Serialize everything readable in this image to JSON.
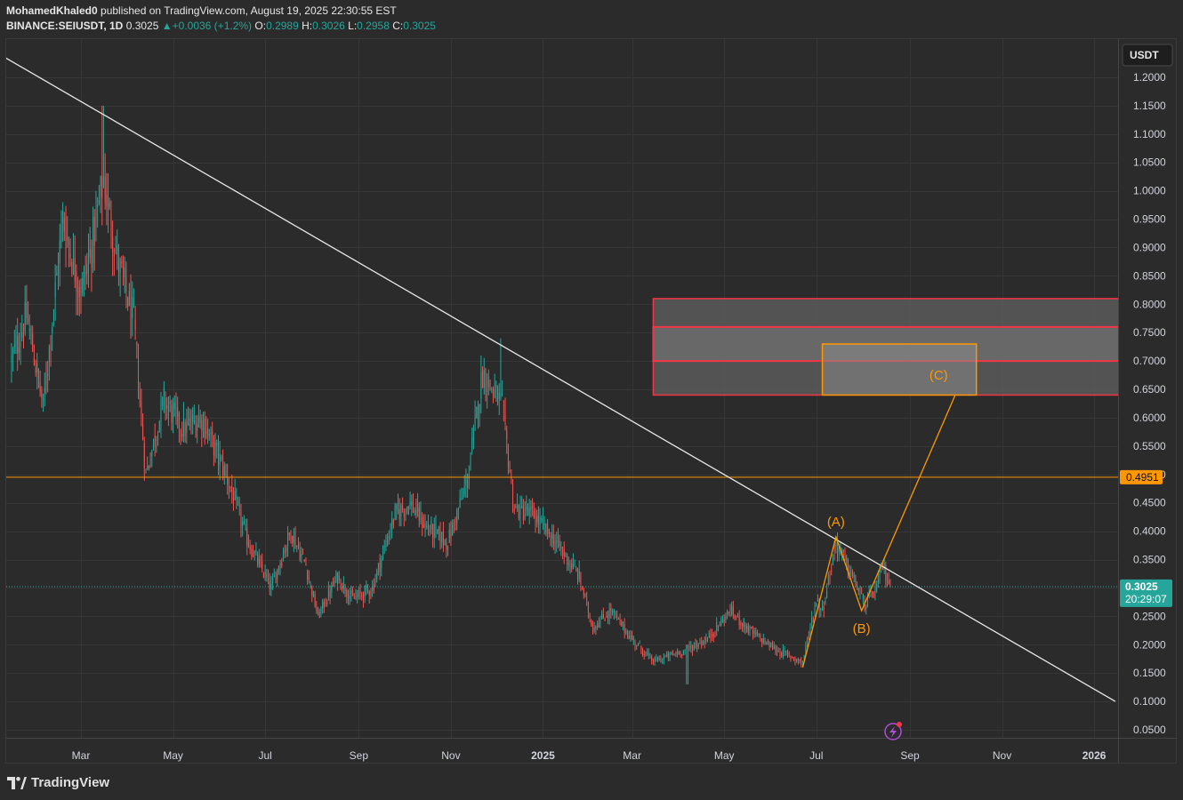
{
  "header": {
    "author": "MohamedKhaled0",
    "published_text": "published on TradingView.com, August 19, 2025 22:30:55 EST",
    "symbol": "BINANCE:SEIUSDT, 1D",
    "last": "0.3025",
    "change": "+0.0036 (+1.2%)",
    "o_label": "O:",
    "o_val": "0.2989",
    "h_label": "H:",
    "h_val": "0.3026",
    "l_label": "L:",
    "l_val": "0.2958",
    "c_label": "C:",
    "c_val": "0.3025"
  },
  "footer": {
    "brand": "TradingView"
  },
  "chart_data": {
    "type": "candlestick",
    "currency_label": "USDT",
    "y_ticks": [
      "1.2000",
      "1.1500",
      "1.1000",
      "1.0500",
      "1.0000",
      "0.9500",
      "0.9000",
      "0.8500",
      "0.8000",
      "0.7500",
      "0.7000",
      "0.6500",
      "0.6000",
      "0.5500",
      "0.5000",
      "0.4500",
      "0.4000",
      "0.3500",
      "0.3000",
      "0.2500",
      "0.2000",
      "0.1500",
      "0.1000",
      "0.0500"
    ],
    "ylim": [
      0.03,
      1.25
    ],
    "x_ticks": [
      "Mar",
      "May",
      "Jul",
      "Sep",
      "Nov",
      "2025",
      "Mar",
      "May",
      "Jul",
      "Sep",
      "Nov",
      "2026"
    ],
    "price_path": [
      [
        "2024-01-15",
        0.7
      ],
      [
        "2024-01-25",
        0.78
      ],
      [
        "2024-02-05",
        0.62
      ],
      [
        "2024-02-18",
        0.95
      ],
      [
        "2024-03-01",
        0.82
      ],
      [
        "2024-03-08",
        0.9
      ],
      [
        "2024-03-16",
        1.02
      ],
      [
        "2024-03-25",
        0.88
      ],
      [
        "2024-04-05",
        0.77
      ],
      [
        "2024-04-13",
        0.5
      ],
      [
        "2024-04-25",
        0.63
      ],
      [
        "2024-05-08",
        0.58
      ],
      [
        "2024-05-20",
        0.6
      ],
      [
        "2024-06-05",
        0.5
      ],
      [
        "2024-06-20",
        0.38
      ],
      [
        "2024-07-05",
        0.3
      ],
      [
        "2024-07-18",
        0.4
      ],
      [
        "2024-07-28",
        0.34
      ],
      [
        "2024-08-05",
        0.25
      ],
      [
        "2024-08-18",
        0.32
      ],
      [
        "2024-08-28",
        0.28
      ],
      [
        "2024-09-10",
        0.3
      ],
      [
        "2024-09-25",
        0.43
      ],
      [
        "2024-10-05",
        0.45
      ],
      [
        "2024-10-15",
        0.41
      ],
      [
        "2024-10-30",
        0.38
      ],
      [
        "2024-11-12",
        0.49
      ],
      [
        "2024-11-22",
        0.68
      ],
      [
        "2024-12-05",
        0.62
      ],
      [
        "2024-12-13",
        0.44
      ],
      [
        "2024-12-25",
        0.43
      ],
      [
        "2025-01-10",
        0.38
      ],
      [
        "2025-01-25",
        0.32
      ],
      [
        "2025-02-03",
        0.23
      ],
      [
        "2025-02-15",
        0.26
      ],
      [
        "2025-03-01",
        0.21
      ],
      [
        "2025-03-15",
        0.17
      ],
      [
        "2025-04-05",
        0.19
      ],
      [
        "2025-04-20",
        0.21
      ],
      [
        "2025-05-05",
        0.26
      ],
      [
        "2025-05-20",
        0.22
      ],
      [
        "2025-06-05",
        0.19
      ],
      [
        "2025-06-22",
        0.17
      ],
      [
        "2025-07-01",
        0.28
      ],
      [
        "2025-07-05",
        0.26
      ],
      [
        "2025-07-14",
        0.38
      ],
      [
        "2025-07-25",
        0.32
      ],
      [
        "2025-08-02",
        0.27
      ],
      [
        "2025-08-10",
        0.3
      ],
      [
        "2025-08-14",
        0.34
      ],
      [
        "2025-08-19",
        0.3025
      ]
    ],
    "wick_extremes": [
      [
        "2024-03-16",
        1.15,
        "high"
      ],
      [
        "2024-12-04",
        0.74,
        "high"
      ],
      [
        "2025-04-07",
        0.13,
        "low"
      ],
      [
        "2025-06-22",
        0.16,
        "low"
      ]
    ],
    "trendline": {
      "from": [
        "2024-01-01",
        1.25
      ],
      "to": [
        "2026-01-15",
        0.1
      ],
      "color": "#e8e8e8"
    },
    "horizontal_line": {
      "value": 0.4951,
      "label": "0.4951",
      "color": "#ff9800"
    },
    "current_price": {
      "value": 0.3025,
      "label": "0.3025",
      "countdown": "20:29:07",
      "color": "#26a69a"
    },
    "target_zone_outer": {
      "top": 0.81,
      "bottom": 0.64,
      "start": "2025-03-15",
      "color": "#f23645"
    },
    "target_zone_middle": {
      "top": 0.76,
      "bottom": 0.7,
      "color": "#f23645"
    },
    "target_zone_inner": {
      "top": 0.73,
      "bottom": 0.64,
      "start": "2025-07-05",
      "end": "2025-10-15",
      "color": "#ff9800"
    },
    "wave_path": [
      [
        "2025-06-22",
        0.16
      ],
      [
        "2025-07-14",
        0.39
      ],
      [
        "2025-07-31",
        0.26
      ],
      [
        "2025-10-01",
        0.64
      ]
    ],
    "wave_labels": [
      {
        "text": "(A)",
        "date": "2025-07-14",
        "value": 0.39,
        "place": "above"
      },
      {
        "text": "(B)",
        "date": "2025-07-31",
        "value": 0.26,
        "place": "below"
      },
      {
        "text": "(C)",
        "date": "2025-09-20",
        "value": 0.675,
        "place": "center"
      }
    ],
    "colors": {
      "up": "#26a69a",
      "down": "#ef5350",
      "wave": "#ff9800",
      "bg": "#2b2b2b",
      "grid": "#363636"
    }
  }
}
